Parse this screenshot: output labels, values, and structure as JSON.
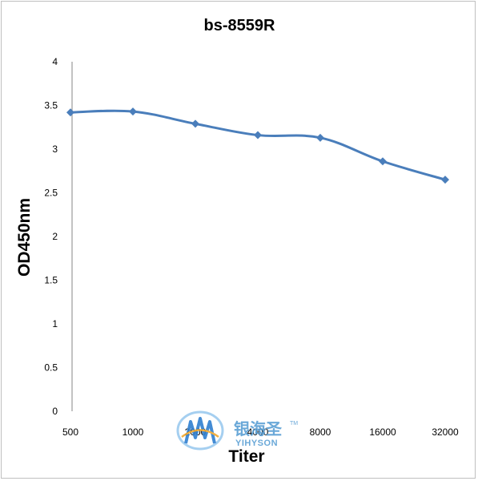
{
  "chart_data": {
    "type": "line",
    "title": "bs-8559R",
    "xlabel": "Titer",
    "ylabel": "OD450nm",
    "categories": [
      "500",
      "1000",
      "2000",
      "4000",
      "8000",
      "16000",
      "32000"
    ],
    "series": [
      {
        "values": [
          3.42,
          3.43,
          3.29,
          3.16,
          3.13,
          2.86,
          2.65
        ],
        "color": "#4a7ebb"
      }
    ],
    "ylim": [
      0,
      4
    ],
    "yticks": [
      "0",
      "0.5",
      "1",
      "1.5",
      "2",
      "2.5",
      "3",
      "3.5",
      "4"
    ],
    "grid": false,
    "legend": "none",
    "marker": "diamond"
  },
  "watermark": {
    "name_cn": "银海圣",
    "name_en": "YIHYSON",
    "tm": "TM"
  }
}
